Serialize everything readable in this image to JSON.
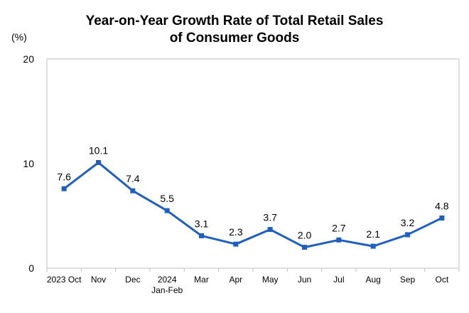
{
  "chart_data": {
    "type": "line",
    "title": "Year-on-Year Growth Rate of Total Retail Sales",
    "subtitle": "of Consumer Goods",
    "ylabel": "(%)",
    "xlabel": "",
    "ylim": [
      0,
      20
    ],
    "yticks": [
      "0",
      "10",
      "20"
    ],
    "categories": [
      [
        "2023 Oct"
      ],
      [
        "Nov"
      ],
      [
        "Dec"
      ],
      [
        "2024",
        "Jan-Feb"
      ],
      [
        "Mar"
      ],
      [
        "Apr"
      ],
      [
        "May"
      ],
      [
        "Jun"
      ],
      [
        "Jul"
      ],
      [
        "Aug"
      ],
      [
        "Sep"
      ],
      [
        "Oct"
      ]
    ],
    "series": [
      {
        "values": [
          7.6,
          10.1,
          7.4,
          5.5,
          3.1,
          2.3,
          3.7,
          2.0,
          2.7,
          2.1,
          3.2,
          4.8
        ],
        "labels": [
          "7.6",
          "10.1",
          "7.4",
          "5.5",
          "3.1",
          "2.3",
          "3.7",
          "2.0",
          "2.7",
          "2.1",
          "3.2",
          "4.8"
        ],
        "color": "#1F5FBF"
      }
    ],
    "grid": false,
    "legend": "none"
  }
}
